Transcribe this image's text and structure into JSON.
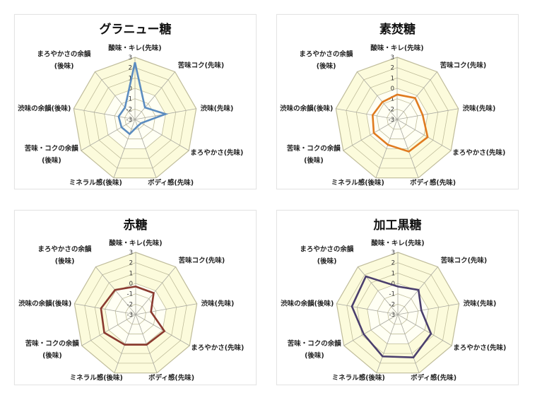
{
  "axes": [
    "酸味・キレ(先味)",
    "苦味コク(先味)",
    "渋味(先味)",
    "まろやかさ(先味)",
    "ボディ感(先味)",
    "ミネラル感(後味)",
    "苦味・コクの余韻(後味)",
    "渋味の余韻(後味)",
    "まろやかさの余韻(後味)"
  ],
  "ticks": [
    "3",
    "2",
    "1",
    "0",
    "-1",
    "-2",
    "-3"
  ],
  "chart_data": [
    {
      "type": "radar",
      "title": "グラニュー糖",
      "series": [
        {
          "name": "グラニュー糖",
          "color": "#5B8CC0",
          "values": [
            2.5,
            -1.5,
            0.0,
            -2.3,
            -2.3,
            -1.5,
            -1.5,
            -1.4,
            -1.5
          ]
        }
      ],
      "range": [
        -3,
        3
      ],
      "axis_labels": [
        "酸味・キレ(先味)",
        "苦味コク(先味)",
        "渋味(先味)",
        "まろやかさ(先味)",
        "ボディ感(先味)",
        "ミネラル感(後味)",
        "苦味・コクの余韻(後味)",
        "渋味の余韻(後味)",
        "まろやかさの余韻(後味)"
      ],
      "tick_labels": [
        "3",
        "2",
        "1",
        "0",
        "-1",
        "-2",
        "-3"
      ],
      "grid": true,
      "legend": "none"
    },
    {
      "type": "radar",
      "title": "素焚糖",
      "series": [
        {
          "name": "素焚糖",
          "color": "#E07B20",
          "values": [
            -0.6,
            -0.3,
            -0.5,
            0.4,
            0.3,
            -0.4,
            -0.4,
            -0.6,
            -0.8
          ]
        }
      ],
      "range": [
        -3,
        3
      ],
      "axis_labels": [
        "酸味・キレ(先味)",
        "苦味コク(先味)",
        "渋味(先味)",
        "まろやかさ(先味)",
        "ボディ感(先味)",
        "ミネラル感(後味)",
        "苦味・コクの余韻(後味)",
        "渋味の余韻(後味)",
        "まろやかさの余韻(後味)"
      ],
      "tick_labels": [
        "3",
        "2",
        "1",
        "0",
        "-1",
        "-2",
        "-3"
      ],
      "grid": true,
      "legend": "none"
    },
    {
      "type": "radar",
      "title": "赤糖",
      "series": [
        {
          "name": "赤糖",
          "color": "#8B3A30",
          "values": [
            -0.3,
            -0.3,
            -1.5,
            0.2,
            0.1,
            0.1,
            0.5,
            0.4,
            0.1
          ]
        }
      ],
      "range": [
        -3,
        3
      ],
      "axis_labels": [
        "酸味・キレ(先味)",
        "苦味コク(先味)",
        "渋味(先味)",
        "まろやかさ(先味)",
        "ボディ感(先味)",
        "ミネラル感(後味)",
        "苦味・コクの余韻(後味)",
        "渋味の余韻(後味)",
        "まろやかさの余韻(後味)"
      ],
      "tick_labels": [
        "3",
        "2",
        "1",
        "0",
        "-1",
        "-2",
        "-3"
      ],
      "grid": true,
      "legend": "none"
    },
    {
      "type": "radar",
      "title": "加工黒糖",
      "series": [
        {
          "name": "加工黒糖",
          "color": "#4B3F6E",
          "values": [
            -0.3,
            0.1,
            -0.7,
            0.7,
            1.4,
            1.3,
            0.8,
            1.5,
            1.8
          ]
        }
      ],
      "range": [
        -3,
        3
      ],
      "axis_labels": [
        "酸味・キレ(先味)",
        "苦味コク(先味)",
        "渋味(先味)",
        "まろやかさ(先味)",
        "ボディ感(先味)",
        "ミネラル感(後味)",
        "苦味・コクの余韻(後味)",
        "渋味の余韻(後味)",
        "まろやかさの余韻(後味)"
      ],
      "tick_labels": [
        "3",
        "2",
        "1",
        "0",
        "-1",
        "-2",
        "-3"
      ],
      "grid": true,
      "legend": "none"
    }
  ],
  "style": {
    "plot_fill": "#FCFBDC",
    "plot_fill_inner": "#FFFFF4",
    "grid_color": "#BFBC9A",
    "spoke_color": "#A8A8A0"
  }
}
